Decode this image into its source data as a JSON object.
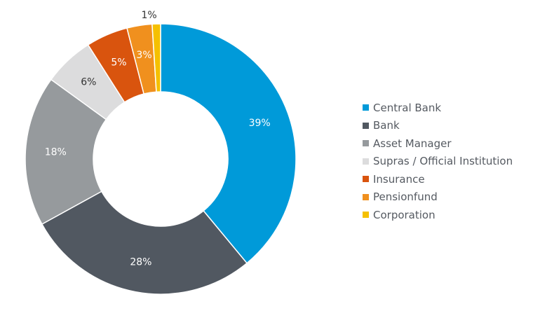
{
  "chart_data": {
    "type": "pie",
    "donut": true,
    "legend_position": "right",
    "categories": [
      "Central Bank",
      "Bank",
      "Asset Manager",
      "Supras / Official Institution",
      "Insurance",
      "Pensionfund",
      "Corporation"
    ],
    "values": [
      39,
      28,
      18,
      6,
      5,
      3,
      1
    ],
    "data_labels": [
      "39%",
      "28%",
      "18%",
      "6%",
      "5%",
      "3%",
      "1%"
    ],
    "colors": [
      "#009ad9",
      "#515861",
      "#969a9d",
      "#dcdcdd",
      "#d9540e",
      "#f0901e",
      "#f5c000"
    ],
    "label_colors": [
      "#ffffff",
      "#ffffff",
      "#ffffff",
      "#333333",
      "#ffffff",
      "#ffffff",
      "#333333"
    ]
  }
}
